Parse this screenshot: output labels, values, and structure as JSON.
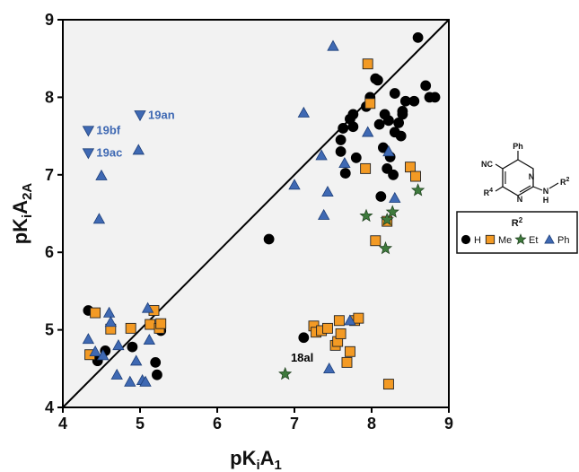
{
  "chart_data": {
    "type": "scatter",
    "title": "",
    "xlabel_main": "pK",
    "xlabel_sub1": "i",
    "xlabel_mid": "A",
    "xlabel_sub2": "1",
    "ylabel_main": "pK",
    "ylabel_sub1": "i",
    "ylabel_mid": "A",
    "ylabel_sub2": "2A",
    "xlim": [
      4,
      9
    ],
    "ylim": [
      4,
      9
    ],
    "xticks": [
      "4",
      "5",
      "6",
      "7",
      "8",
      "9"
    ],
    "yticks": [
      "4",
      "5",
      "6",
      "7",
      "8",
      "9"
    ],
    "grid": false,
    "identity_line": true,
    "legend": {
      "placement": "right",
      "title": "R",
      "title_sup": "2",
      "entries": [
        "H",
        "Me",
        "Et",
        "Ph"
      ]
    },
    "series": [
      {
        "name": "H",
        "marker": "circle",
        "color": "#000000",
        "points": [
          [
            4.33,
            5.25
          ],
          [
            4.45,
            4.6
          ],
          [
            4.55,
            4.73
          ],
          [
            4.9,
            4.78
          ],
          [
            5.2,
            4.58
          ],
          [
            5.22,
            4.42
          ],
          [
            5.27,
            4.99
          ],
          [
            6.67,
            6.17
          ],
          [
            7.12,
            4.9
          ],
          [
            7.6,
            7.45
          ],
          [
            7.6,
            7.3
          ],
          [
            7.63,
            7.6
          ],
          [
            7.66,
            7.02
          ],
          [
            7.72,
            7.72
          ],
          [
            7.76,
            7.62
          ],
          [
            7.8,
            7.22
          ],
          [
            7.76,
            7.78
          ],
          [
            7.93,
            7.88
          ],
          [
            7.98,
            8.0
          ],
          [
            8.05,
            8.24
          ],
          [
            8.08,
            8.22
          ],
          [
            8.1,
            7.65
          ],
          [
            8.12,
            6.72
          ],
          [
            8.15,
            7.35
          ],
          [
            8.17,
            7.78
          ],
          [
            8.2,
            7.08
          ],
          [
            8.22,
            7.7
          ],
          [
            8.24,
            7.23
          ],
          [
            8.3,
            8.05
          ],
          [
            8.28,
            7.0
          ],
          [
            8.3,
            7.55
          ],
          [
            8.35,
            7.67
          ],
          [
            8.38,
            7.5
          ],
          [
            8.4,
            7.78
          ],
          [
            8.44,
            7.95
          ],
          [
            8.4,
            7.82
          ],
          [
            8.55,
            7.95
          ],
          [
            8.6,
            8.77
          ],
          [
            8.7,
            8.15
          ],
          [
            8.75,
            8.0
          ],
          [
            8.82,
            8.0
          ]
        ]
      },
      {
        "name": "Me",
        "marker": "square",
        "color": "#F39A24",
        "points": [
          [
            4.35,
            4.68
          ],
          [
            4.42,
            5.22
          ],
          [
            4.62,
            5.01
          ],
          [
            4.88,
            5.02
          ],
          [
            5.13,
            5.07
          ],
          [
            5.18,
            5.25
          ],
          [
            5.25,
            5.02
          ],
          [
            5.27,
            5.08
          ],
          [
            7.25,
            5.05
          ],
          [
            7.28,
            4.97
          ],
          [
            7.35,
            4.99
          ],
          [
            7.43,
            5.02
          ],
          [
            7.53,
            4.8
          ],
          [
            7.56,
            4.85
          ],
          [
            7.58,
            5.12
          ],
          [
            7.6,
            4.95
          ],
          [
            7.68,
            4.58
          ],
          [
            7.72,
            4.72
          ],
          [
            7.78,
            5.12
          ],
          [
            7.83,
            5.15
          ],
          [
            7.92,
            7.08
          ],
          [
            7.95,
            8.43
          ],
          [
            7.98,
            7.92
          ],
          [
            8.05,
            6.15
          ],
          [
            8.2,
            6.4
          ],
          [
            8.22,
            4.3
          ],
          [
            8.5,
            7.1
          ],
          [
            8.57,
            6.98
          ]
        ]
      },
      {
        "name": "Et",
        "marker": "star",
        "color": "#3E7A3C",
        "points": [
          [
            6.88,
            4.43
          ],
          [
            7.93,
            6.47
          ],
          [
            8.18,
            6.05
          ],
          [
            8.2,
            6.42
          ],
          [
            8.27,
            6.52
          ],
          [
            8.6,
            6.8
          ]
        ]
      },
      {
        "name": "Ph",
        "marker": "triangle",
        "color": "#3F69B3",
        "points": [
          [
            4.33,
            4.88
          ],
          [
            4.42,
            4.72
          ],
          [
            4.47,
            6.43
          ],
          [
            4.5,
            6.99
          ],
          [
            4.52,
            4.67
          ],
          [
            4.6,
            5.22
          ],
          [
            4.62,
            5.1
          ],
          [
            4.7,
            4.42
          ],
          [
            4.72,
            4.8
          ],
          [
            4.87,
            4.33
          ],
          [
            4.95,
            4.6
          ],
          [
            4.98,
            7.32
          ],
          [
            5.03,
            4.35
          ],
          [
            5.07,
            4.33
          ],
          [
            5.1,
            5.28
          ],
          [
            5.12,
            4.87
          ],
          [
            7.0,
            6.87
          ],
          [
            7.12,
            7.8
          ],
          [
            7.35,
            7.25
          ],
          [
            7.38,
            6.48
          ],
          [
            7.43,
            6.78
          ],
          [
            7.45,
            4.5
          ],
          [
            7.5,
            8.66
          ],
          [
            7.65,
            7.15
          ],
          [
            7.72,
            5.12
          ],
          [
            7.95,
            7.55
          ],
          [
            8.22,
            7.3
          ],
          [
            8.3,
            6.7
          ]
        ]
      }
    ],
    "labeled_points": [
      {
        "label": "19bf",
        "x": 4.33,
        "y": 7.57,
        "color": "#3F69B3",
        "marker": "triangle-down",
        "label_side": "right"
      },
      {
        "label": "19an",
        "x": 5.0,
        "y": 7.77,
        "color": "#3F69B3",
        "marker": "triangle-down",
        "label_side": "right"
      },
      {
        "label": "19ac",
        "x": 4.33,
        "y": 7.28,
        "color": "#3F69B3",
        "marker": "triangle-down",
        "label_side": "right"
      },
      {
        "label": "18al",
        "x": 7.1,
        "y": 4.75,
        "color": "#000000",
        "marker": "none",
        "label_side": "below"
      }
    ]
  },
  "structure": {
    "top": "Ph",
    "left_group": "NC",
    "bottom_left": "R",
    "bottom_left_sup": "4",
    "ring_atoms": [
      "N",
      "N"
    ],
    "amine": "N",
    "amine_h": "H",
    "sub": "R",
    "sub_sup": "2"
  }
}
